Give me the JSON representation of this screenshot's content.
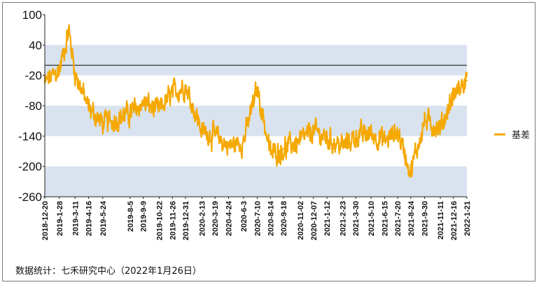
{
  "chart_data": {
    "type": "line",
    "title": "",
    "xlabel": "",
    "ylabel": "",
    "ylim": [
      -260,
      100
    ],
    "yticks": [
      100,
      40,
      -20,
      -80,
      -140,
      -200,
      -260
    ],
    "reference_line": 0,
    "shaded_bands": [
      [
        -260,
        -200
      ],
      [
        -140,
        -80
      ],
      [
        -20,
        40
      ]
    ],
    "band_color": "#d9e3ef",
    "line_color": "#f5a800",
    "legend_position": "right",
    "xticks": [
      "2018-12-20",
      "2019-1-28",
      "2019-3-11",
      "2019-4-16",
      "2019-5-24",
      "2019-8-5",
      "2019-9-9",
      "2019-10-22",
      "2019-11-26",
      "2019-12-31",
      "2020-2-13",
      "2020-3-19",
      "2020-4-24",
      "2020-6-3",
      "2020-7-10",
      "2020-8-14",
      "2020-9-18",
      "2020-11-02",
      "2020-12-07",
      "2021-1-12",
      "2021-2-23",
      "2021-3-30",
      "2021-5-10",
      "2021-6-15",
      "2021-7-20",
      "2021-8-24",
      "2021-9-30",
      "2021-11-11",
      "2021-12-16",
      "2022-1-21"
    ],
    "series": [
      {
        "name": "基差",
        "x": [
          "2018-12-20",
          "2019-1-28",
          "2019-2-22",
          "2019-3-11",
          "2019-4-16",
          "2019-5-24",
          "2019-8-5",
          "2019-9-9",
          "2019-10-22",
          "2019-11-26",
          "2019-12-31",
          "2020-2-13",
          "2020-3-19",
          "2020-4-24",
          "2020-6-3",
          "2020-7-10",
          "2020-8-14",
          "2020-9-18",
          "2020-11-02",
          "2020-12-07",
          "2021-1-12",
          "2021-2-23",
          "2021-3-30",
          "2021-5-10",
          "2021-6-15",
          "2021-7-20",
          "2021-8-24",
          "2021-9-30",
          "2021-11-11",
          "2021-12-16",
          "2022-1-21"
        ],
        "values": [
          -35,
          -10,
          70,
          -15,
          -85,
          -115,
          -95,
          -75,
          -90,
          -55,
          -40,
          -130,
          -140,
          -160,
          -150,
          -45,
          -175,
          -165,
          -150,
          -130,
          -145,
          -160,
          -140,
          -135,
          -150,
          -130,
          -210,
          -110,
          -125,
          -60,
          -30
        ]
      }
    ]
  },
  "legend": {
    "label": "基差"
  },
  "source": "数据统计：七禾研究中心（2022年1月26日）"
}
